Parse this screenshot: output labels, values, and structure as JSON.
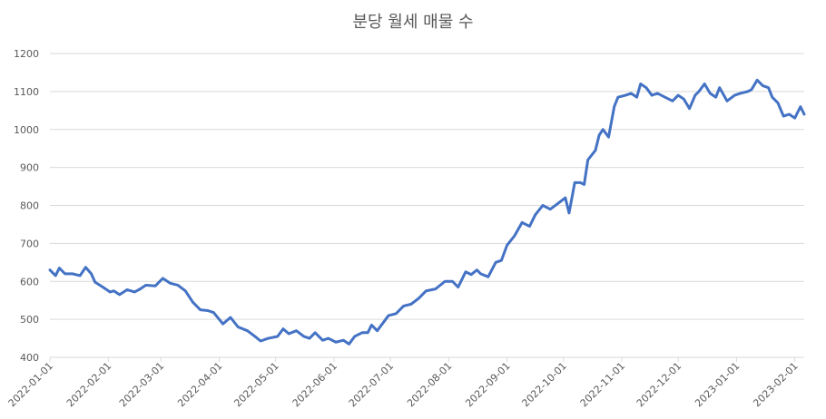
{
  "chart_data": {
    "type": "line",
    "title": "분당 월세 매물 수",
    "x": [
      "2022-01-01",
      "2022-01-04",
      "2022-01-06",
      "2022-01-09",
      "2022-01-13",
      "2022-01-17",
      "2022-01-20",
      "2022-01-23",
      "2022-01-25",
      "2022-01-30",
      "2022-02-02",
      "2022-02-04",
      "2022-02-07",
      "2022-02-11",
      "2022-02-15",
      "2022-02-18",
      "2022-02-21",
      "2022-02-26",
      "2022-03-02",
      "2022-03-06",
      "2022-03-10",
      "2022-03-14",
      "2022-03-18",
      "2022-03-22",
      "2022-03-26",
      "2022-03-29",
      "2022-04-03",
      "2022-04-07",
      "2022-04-11",
      "2022-04-16",
      "2022-04-20",
      "2022-04-23",
      "2022-04-27",
      "2022-05-02",
      "2022-05-05",
      "2022-05-08",
      "2022-05-12",
      "2022-05-16",
      "2022-05-19",
      "2022-05-22",
      "2022-05-26",
      "2022-05-29",
      "2022-06-02",
      "2022-06-06",
      "2022-06-09",
      "2022-06-12",
      "2022-06-16",
      "2022-06-19",
      "2022-06-21",
      "2022-06-24",
      "2022-06-27",
      "2022-06-30",
      "2022-07-04",
      "2022-07-08",
      "2022-07-12",
      "2022-07-16",
      "2022-07-20",
      "2022-07-25",
      "2022-07-30",
      "2022-08-03",
      "2022-08-06",
      "2022-08-10",
      "2022-08-13",
      "2022-08-16",
      "2022-08-18",
      "2022-08-22",
      "2022-08-26",
      "2022-08-29",
      "2022-09-01",
      "2022-09-05",
      "2022-09-09",
      "2022-09-13",
      "2022-09-16",
      "2022-09-20",
      "2022-09-24",
      "2022-09-28",
      "2022-10-02",
      "2022-10-04",
      "2022-10-07",
      "2022-10-10",
      "2022-10-12",
      "2022-10-14",
      "2022-10-18",
      "2022-10-20",
      "2022-10-22",
      "2022-10-25",
      "2022-10-28",
      "2022-10-30",
      "2022-11-03",
      "2022-11-06",
      "2022-11-09",
      "2022-11-11",
      "2022-11-14",
      "2022-11-17",
      "2022-11-20",
      "2022-11-24",
      "2022-11-28",
      "2022-12-01",
      "2022-12-04",
      "2022-12-07",
      "2022-12-10",
      "2022-12-12",
      "2022-12-15",
      "2022-12-18",
      "2022-12-21",
      "2022-12-23",
      "2022-12-27",
      "2022-12-31",
      "2023-01-03",
      "2023-01-07",
      "2023-01-09",
      "2023-01-12",
      "2023-01-15",
      "2023-01-18",
      "2023-01-20",
      "2023-01-23",
      "2023-01-26",
      "2023-01-29",
      "2023-02-01",
      "2023-02-04",
      "2023-02-06"
    ],
    "series": [
      {
        "color": "#4472c4",
        "values": [
          630,
          615,
          635,
          620,
          620,
          615,
          637,
          620,
          598,
          582,
          572,
          575,
          565,
          578,
          572,
          580,
          590,
          588,
          608,
          595,
          590,
          575,
          545,
          525,
          523,
          518,
          488,
          505,
          480,
          470,
          455,
          443,
          450,
          455,
          475,
          462,
          470,
          455,
          450,
          465,
          445,
          450,
          440,
          445,
          435,
          455,
          465,
          465,
          485,
          470,
          490,
          510,
          515,
          535,
          540,
          555,
          575,
          580,
          600,
          600,
          585,
          625,
          618,
          630,
          620,
          612,
          650,
          655,
          695,
          720,
          755,
          745,
          775,
          800,
          790,
          805,
          820,
          780,
          860,
          860,
          855,
          920,
          945,
          985,
          1000,
          980,
          1060,
          1085,
          1090,
          1095,
          1085,
          1120,
          1110,
          1090,
          1095,
          1085,
          1075,
          1090,
          1080,
          1055,
          1090,
          1100,
          1120,
          1095,
          1085,
          1110,
          1075,
          1090,
          1095,
          1100,
          1105,
          1130,
          1115,
          1110,
          1085,
          1070,
          1035,
          1040,
          1030,
          1060,
          1040
        ]
      }
    ],
    "xlim": [
      "2022-01-01",
      "2023-02-06"
    ],
    "xticks": [
      "2022-01-01",
      "2022-02-01",
      "2022-03-01",
      "2022-04-01",
      "2022-05-01",
      "2022-06-01",
      "2022-07-01",
      "2022-08-01",
      "2022-09-01",
      "2022-10-01",
      "2022-11-01",
      "2022-12-01",
      "2023-01-01",
      "2023-02-01"
    ],
    "ylim": [
      400,
      1200
    ],
    "yticks": [
      400,
      500,
      600,
      700,
      800,
      900,
      1000,
      1100,
      1200
    ],
    "grid": true
  }
}
